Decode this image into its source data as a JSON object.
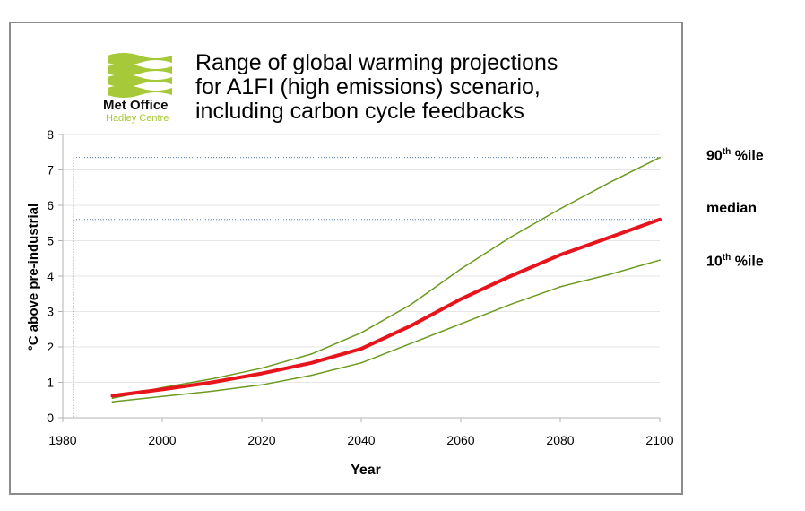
{
  "logo": {
    "name": "Met Office",
    "subname": "Hadley Centre",
    "color": "#a6c939"
  },
  "chart_data": {
    "type": "line",
    "title": "Range of global warming projections for A1FI (high emissions) scenario, including carbon cycle feedbacks",
    "title_lines": [
      "Range of global warming projections",
      "for A1FI (high emissions) scenario,",
      "including carbon cycle feedbacks"
    ],
    "xlabel": "Year",
    "ylabel": "°C above pre-industrial",
    "xlim": [
      1980,
      2100
    ],
    "ylim": [
      0,
      8
    ],
    "xticks": [
      1980,
      2000,
      2020,
      2040,
      2060,
      2080,
      2100
    ],
    "yticks": [
      0,
      1,
      2,
      3,
      4,
      5,
      6,
      7,
      8
    ],
    "grid": true,
    "x": [
      1990,
      2000,
      2010,
      2020,
      2030,
      2040,
      2050,
      2060,
      2070,
      2080,
      2090,
      2100
    ],
    "series": [
      {
        "name": "90th %ile",
        "color": "#6b9a1e",
        "values": [
          0.55,
          0.85,
          1.1,
          1.4,
          1.8,
          2.4,
          3.2,
          4.2,
          5.1,
          5.9,
          6.65,
          7.35
        ]
      },
      {
        "name": "median",
        "color": "#e8141c",
        "values": [
          0.62,
          0.8,
          1.0,
          1.25,
          1.55,
          1.95,
          2.6,
          3.35,
          4.0,
          4.6,
          5.1,
          5.6
        ]
      },
      {
        "name": "10th %ile",
        "color": "#6b9a1e",
        "values": [
          0.45,
          0.6,
          0.75,
          0.93,
          1.2,
          1.55,
          2.1,
          2.65,
          3.2,
          3.7,
          4.05,
          4.45
        ]
      }
    ],
    "reference_lines": [
      7.35,
      5.6
    ],
    "side_labels": [
      {
        "base": "90",
        "sup": "th",
        "rest": " %ile"
      },
      {
        "base": "median",
        "sup": "",
        "rest": ""
      },
      {
        "base": "10",
        "sup": "th",
        "rest": " %ile"
      }
    ]
  }
}
